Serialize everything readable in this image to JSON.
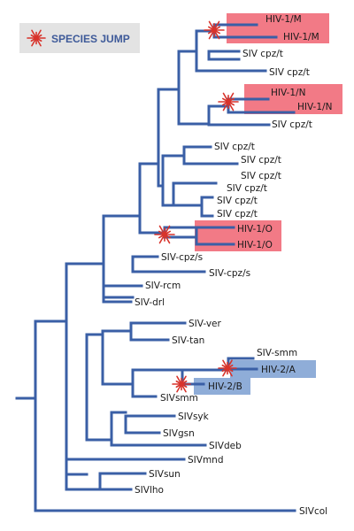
{
  "legend": {
    "label": "SPECIES JUMP"
  },
  "colors": {
    "branch": "#3a5fa6",
    "hiv1_highlight": "#f27a86",
    "hiv2_highlight": "#8fadd8",
    "star": "#d8332b",
    "legend_bg": "#e3e3e3"
  },
  "labels": {
    "hiv1m_a": "HIV-1/M",
    "hiv1m_b": "HIV-1/M",
    "cpz1": "SIV cpz/t",
    "cpz2": "SIV cpz/t",
    "hiv1n_a": "HIV-1/N",
    "hiv1n_b": "HIV-1/N",
    "cpz3": "SIV cpz/t",
    "cpz4": "SIV cpz/t",
    "cpz5": "SIV cpz/t",
    "cpz6": "SIV cpz/t",
    "cpz7": "SIV cpz/t",
    "cpz8": "SIV cpz/t",
    "cpz9": "SIV cpz/t",
    "hiv1o_a": "HIV-1/O",
    "hiv1o_b": "HIV-1/O",
    "cpzs1": "SIV-cpz/s",
    "cpzs2": "SIV-cpz/s",
    "rcm": "SIV-rcm",
    "drl": "SIV-drl",
    "ver": "SIV-ver",
    "tan": "SIV-tan",
    "smm": "SIV-smm",
    "hiv2a": "HIV-2/A",
    "hiv2b": "HIV-2/B",
    "sivsmm": "SIVsmm",
    "syk": "SIVsyk",
    "gsn": "SIVgsn",
    "deb": "SIVdeb",
    "mnd": "SIVmnd",
    "sun": "SIVsun",
    "lho": "SIVlho",
    "col": "SIVcol"
  }
}
